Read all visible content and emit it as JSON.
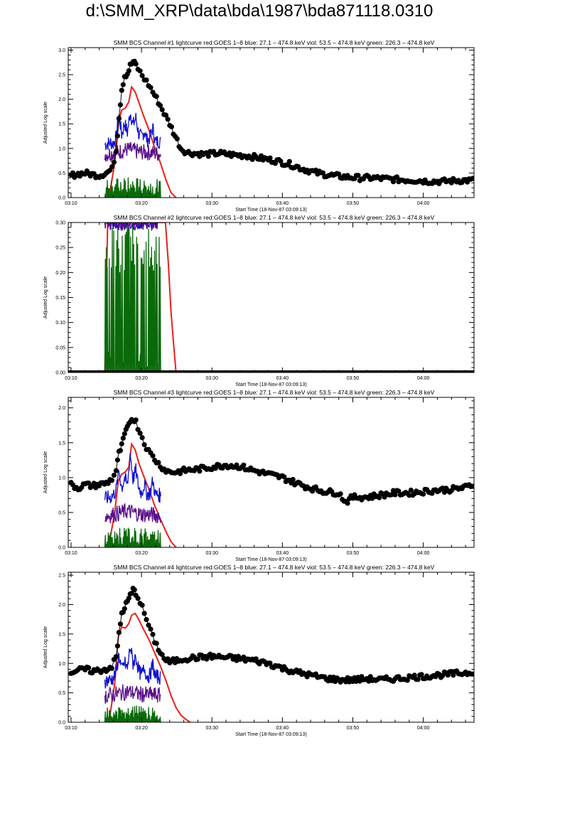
{
  "page": {
    "title": "d:\\SMM_XRP\\data\\bda\\1987\\bda871118.0310"
  },
  "colors": {
    "goes": "#e8201b",
    "blue": "#1010d0",
    "violet": "#5a0f8a",
    "green": "#0a6a0a",
    "bcs": "#000000"
  },
  "chart_data": [
    {
      "type": "line",
      "title": "SMM BCS Channel #1 lightcurve  red:GOES 1–8  blue: 27.1 – 474.8 keV  viol: 53.5 – 474.8 keV  green: 226.3 – 474.8 keV",
      "xlabel": "Start Time (18-Nov-87 03:09:13)",
      "ylabel": "Adjusted Log scale",
      "x_unit": "minutes after 03:00",
      "xlim": [
        9.6,
        67.2
      ],
      "ylim": [
        0,
        3.05
      ],
      "x_ticks": [
        10,
        20,
        30,
        40,
        50,
        60
      ],
      "x_tick_labels": [
        "03:10",
        "03:20",
        "03:30",
        "03:40",
        "03:50",
        "04:00"
      ],
      "y_ticks": [
        0,
        0.5,
        1.0,
        1.5,
        2.0,
        2.5,
        3.0
      ],
      "y_tick_labels": [
        "0.0",
        "0.5",
        "1.0",
        "1.5",
        "2.0",
        "2.5",
        "3.0"
      ],
      "series": [
        {
          "name": "GOES 1-8",
          "color": "goes",
          "x": [
            14.8,
            15.5,
            16.2,
            16.7,
            17.2,
            17.7,
            18.2,
            18.6,
            19.1,
            19.6,
            20.2,
            21.0,
            21.8,
            22.7,
            23.5,
            24.2,
            24.9
          ],
          "y": [
            0.0,
            0.1,
            0.7,
            1.5,
            1.78,
            1.82,
            1.95,
            2.25,
            2.15,
            1.95,
            1.7,
            1.4,
            1.05,
            0.7,
            0.35,
            0.1,
            0.0
          ]
        },
        {
          "name": "blue",
          "color": "blue",
          "x": [
            14.8,
            15.6,
            16.0,
            16.4,
            16.8,
            17.2,
            17.6,
            18.0,
            18.4,
            18.8,
            19.2,
            19.6,
            20.0,
            20.4,
            20.8,
            21.2,
            21.6,
            22.0,
            22.4,
            22.8
          ],
          "y": [
            1.08,
            1.12,
            1.1,
            1.22,
            1.68,
            1.28,
            1.52,
            1.32,
            1.75,
            1.48,
            1.62,
            1.3,
            1.22,
            1.36,
            1.16,
            1.22,
            1.42,
            1.12,
            1.16,
            1.1
          ]
        },
        {
          "name": "violet",
          "color": "violet",
          "x": [
            14.8,
            15.6,
            16.4,
            17.2,
            18.0,
            18.8,
            19.6,
            20.4,
            21.2,
            22.0,
            22.8
          ],
          "y": [
            0.88,
            0.9,
            0.92,
            0.95,
            0.98,
            0.96,
            0.93,
            0.92,
            0.92,
            0.9,
            0.88
          ]
        },
        {
          "name": "green",
          "color": "green",
          "x": [
            14.8,
            16.0,
            17.2,
            18.4,
            19.6,
            20.8,
            22.0,
            22.8
          ],
          "y": [
            0.3,
            0.3,
            0.32,
            0.33,
            0.32,
            0.31,
            0.3,
            0.3
          ]
        },
        {
          "name": "BCS",
          "color": "bcs",
          "x": [
            10,
            11,
            12,
            13,
            14,
            15,
            15.8,
            16.4,
            16.8,
            17.2,
            17.6,
            18.0,
            18.4,
            18.8,
            19.2,
            19.8,
            20.4,
            21.0,
            21.6,
            22.4,
            23.2,
            24.0,
            24.8,
            25.6,
            26.4,
            27.5,
            29,
            31,
            33,
            35,
            37,
            39,
            41,
            43,
            45,
            47,
            49,
            51,
            53,
            55,
            57,
            59,
            61,
            63,
            65,
            67
          ],
          "y": [
            0.45,
            0.48,
            0.5,
            0.47,
            0.45,
            0.5,
            0.58,
            0.95,
            1.65,
            2.2,
            2.48,
            2.52,
            2.68,
            2.76,
            2.7,
            2.55,
            2.42,
            2.3,
            2.15,
            1.95,
            1.72,
            1.5,
            1.25,
            1.0,
            0.92,
            0.9,
            0.88,
            0.9,
            0.87,
            0.85,
            0.8,
            0.75,
            0.68,
            0.58,
            0.5,
            0.45,
            0.42,
            0.4,
            0.4,
            0.38,
            0.36,
            0.35,
            0.33,
            0.33,
            0.35,
            0.35
          ]
        }
      ]
    },
    {
      "type": "line",
      "title": "SMM BCS Channel #2 lightcurve  red:GOES 1–8  blue: 27.1 – 474.8 keV  viol: 53.5 – 474.8 keV  green: 226.3 – 474.8 keV",
      "xlabel": "Start Time (18-Nov-87 03:09:13)",
      "ylabel": "Adjusted Log scale",
      "x_unit": "minutes after 03:00",
      "xlim": [
        9.6,
        67.2
      ],
      "ylim": [
        0,
        0.3
      ],
      "x_ticks": [
        10,
        20,
        30,
        40,
        50,
        60
      ],
      "x_tick_labels": [
        "03:10",
        "03:20",
        "03:30",
        "03:40",
        "03:50",
        "04:00"
      ],
      "y_ticks": [
        0,
        0.05,
        0.1,
        0.15,
        0.2,
        0.25,
        0.3
      ],
      "y_tick_labels": [
        "0.00",
        "0.05",
        "0.10",
        "0.15",
        "0.20",
        "0.25",
        "0.30"
      ],
      "series": [
        {
          "name": "GOES 1-8",
          "color": "goes",
          "x": [
            14.8,
            15.2,
            16.0,
            17.0,
            18.0,
            19.0,
            20.0,
            21.0,
            22.0,
            23.0,
            23.4,
            23.8,
            24.2,
            24.6,
            24.9
          ],
          "y": [
            0.0,
            0.3,
            0.3,
            0.3,
            0.3,
            0.3,
            0.3,
            0.3,
            0.3,
            0.3,
            0.3,
            0.22,
            0.12,
            0.05,
            0.0
          ]
        },
        {
          "name": "blue",
          "color": "blue",
          "x": [
            14.8,
            15.5,
            16.5,
            17.5,
            18.5,
            19.5,
            20.5,
            21.5,
            22.5
          ],
          "y": [
            0.3,
            0.3,
            0.3,
            0.3,
            0.3,
            0.3,
            0.3,
            0.3,
            0.3
          ]
        },
        {
          "name": "violet",
          "color": "violet",
          "x": [
            14.8,
            15.5,
            16.5,
            17.5,
            18.5,
            19.5,
            20.5,
            21.5,
            22.5
          ],
          "y": [
            0.3,
            0.3,
            0.3,
            0.3,
            0.3,
            0.3,
            0.3,
            0.3,
            0.3
          ]
        },
        {
          "name": "green",
          "color": "green",
          "x": [
            14.8,
            16.0,
            17.2,
            18.4,
            19.6,
            20.8,
            22.0,
            22.8
          ],
          "y": [
            0.27,
            0.28,
            0.26,
            0.29,
            0.27,
            0.28,
            0.26,
            0.27
          ]
        },
        {
          "name": "BCS",
          "color": "bcs",
          "x": [
            10,
            20,
            30,
            40,
            50,
            60,
            67
          ],
          "y": [
            0,
            0,
            0,
            0,
            0,
            0,
            0
          ]
        }
      ]
    },
    {
      "type": "line",
      "title": "SMM BCS Channel #3 lightcurve  red:GOES 1–8  blue: 27.1 – 474.8 keV  viol: 53.5 – 474.8 keV  green: 226.3 – 474.8 keV",
      "xlabel": "Start Time (18-Nov-87 03:09:13)",
      "ylabel": "Adjusted Log scale",
      "x_unit": "minutes after 03:00",
      "xlim": [
        9.6,
        67.2
      ],
      "ylim": [
        0,
        2.15
      ],
      "x_ticks": [
        10,
        20,
        30,
        40,
        50,
        60
      ],
      "x_tick_labels": [
        "03:10",
        "03:20",
        "03:30",
        "03:40",
        "03:50",
        "04:00"
      ],
      "y_ticks": [
        0,
        0.5,
        1.0,
        1.5,
        2.0
      ],
      "y_tick_labels": [
        "0.0",
        "0.5",
        "1.0",
        "1.5",
        "2.0"
      ],
      "series": [
        {
          "name": "GOES 1-8",
          "color": "goes",
          "x": [
            14.8,
            15.5,
            16.2,
            16.7,
            17.2,
            17.7,
            18.2,
            18.6,
            19.1,
            19.6,
            20.2,
            21.0,
            21.8,
            22.7,
            23.5,
            24.2,
            24.9
          ],
          "y": [
            0.0,
            0.1,
            0.5,
            0.95,
            1.05,
            1.08,
            1.15,
            1.48,
            1.4,
            1.22,
            1.05,
            0.85,
            0.62,
            0.4,
            0.22,
            0.08,
            0.0
          ]
        },
        {
          "name": "blue",
          "color": "blue",
          "x": [
            14.8,
            15.6,
            16.0,
            16.4,
            16.8,
            17.2,
            17.6,
            18.0,
            18.4,
            18.8,
            19.2,
            19.6,
            20.0,
            20.4,
            20.8,
            21.2,
            21.6,
            22.0,
            22.4,
            22.8
          ],
          "y": [
            0.7,
            0.72,
            0.75,
            0.82,
            1.1,
            0.85,
            1.0,
            0.88,
            1.35,
            0.98,
            1.1,
            0.86,
            0.78,
            0.9,
            0.76,
            0.78,
            0.95,
            0.75,
            0.76,
            0.72
          ]
        },
        {
          "name": "violet",
          "color": "violet",
          "x": [
            14.8,
            15.6,
            16.4,
            17.2,
            18.0,
            18.8,
            19.6,
            20.4,
            21.2,
            22.0,
            22.8
          ],
          "y": [
            0.45,
            0.46,
            0.48,
            0.5,
            0.52,
            0.5,
            0.48,
            0.47,
            0.47,
            0.46,
            0.45
          ]
        },
        {
          "name": "green",
          "color": "green",
          "x": [
            14.8,
            16.0,
            17.2,
            18.4,
            19.6,
            20.8,
            22.0,
            22.8
          ],
          "y": [
            0.2,
            0.2,
            0.22,
            0.23,
            0.22,
            0.21,
            0.2,
            0.2
          ]
        },
        {
          "name": "BCS",
          "color": "bcs",
          "x": [
            10,
            11,
            12,
            13,
            14,
            15,
            15.8,
            16.4,
            16.8,
            17.2,
            17.6,
            18.0,
            18.4,
            18.8,
            19.2,
            19.8,
            20.4,
            21.0,
            21.6,
            22.4,
            23.2,
            24.0,
            25,
            26,
            28,
            30,
            32,
            34,
            36,
            38,
            40,
            42,
            44,
            46,
            48,
            49,
            50,
            52,
            54,
            56,
            58,
            60,
            62,
            64,
            66,
            67
          ],
          "y": [
            0.9,
            0.85,
            0.9,
            0.88,
            0.9,
            0.92,
            0.98,
            1.1,
            1.35,
            1.45,
            1.62,
            1.7,
            1.82,
            1.85,
            1.8,
            1.65,
            1.5,
            1.38,
            1.3,
            1.2,
            1.12,
            1.08,
            1.08,
            1.1,
            1.12,
            1.15,
            1.18,
            1.16,
            1.1,
            1.05,
            1.0,
            0.92,
            0.85,
            0.8,
            0.78,
            0.65,
            0.72,
            0.72,
            0.75,
            0.78,
            0.78,
            0.8,
            0.82,
            0.83,
            0.86,
            0.9
          ]
        }
      ]
    },
    {
      "type": "line",
      "title": "SMM BCS Channel #4 lightcurve  red:GOES 1–8  blue: 27.1 – 474.8 keV  viol: 53.5 – 474.8 keV  green: 226.3 – 474.8 keV",
      "xlabel": "Start Time (18-Nov-87 03:09:13)",
      "ylabel": "Adjusted Log scale",
      "x_unit": "minutes after 03:00",
      "xlim": [
        9.6,
        67.2
      ],
      "ylim": [
        0,
        2.55
      ],
      "x_ticks": [
        10,
        20,
        30,
        40,
        50,
        60
      ],
      "x_tick_labels": [
        "03:10",
        "03:20",
        "03:30",
        "03:40",
        "03:50",
        "04:00"
      ],
      "y_ticks": [
        0,
        0.5,
        1.0,
        1.5,
        2.0,
        2.5
      ],
      "y_tick_labels": [
        "0.0",
        "0.5",
        "1.0",
        "1.5",
        "2.0",
        "2.5"
      ],
      "series": [
        {
          "name": "GOES 1-8",
          "color": "goes",
          "x": [
            14.8,
            15.5,
            16.2,
            16.7,
            17.2,
            17.7,
            18.2,
            18.6,
            19.1,
            19.6,
            20.2,
            21.0,
            21.8,
            22.7,
            23.5,
            24.2,
            24.9,
            25.6,
            26.3,
            26.9
          ],
          "y": [
            0.0,
            0.1,
            0.65,
            1.45,
            1.62,
            1.6,
            1.68,
            1.82,
            1.85,
            1.75,
            1.6,
            1.42,
            1.2,
            0.95,
            0.7,
            0.45,
            0.25,
            0.12,
            0.05,
            0.0
          ]
        },
        {
          "name": "blue",
          "color": "blue",
          "x": [
            14.8,
            15.6,
            16.0,
            16.4,
            16.8,
            17.2,
            17.6,
            18.0,
            18.4,
            18.8,
            19.2,
            19.6,
            20.0,
            20.4,
            20.8,
            21.2,
            21.6,
            22.0,
            22.4,
            22.8
          ],
          "y": [
            0.7,
            0.72,
            0.75,
            0.85,
            1.15,
            0.88,
            1.02,
            0.9,
            1.3,
            1.0,
            1.12,
            0.88,
            0.8,
            0.92,
            0.78,
            0.8,
            0.98,
            0.76,
            0.78,
            0.74
          ]
        },
        {
          "name": "violet",
          "color": "violet",
          "x": [
            14.8,
            15.6,
            16.4,
            17.2,
            18.0,
            18.8,
            19.6,
            20.4,
            21.2,
            22.0,
            22.8
          ],
          "y": [
            0.45,
            0.46,
            0.48,
            0.5,
            0.52,
            0.5,
            0.48,
            0.47,
            0.47,
            0.46,
            0.45
          ]
        },
        {
          "name": "green",
          "color": "green",
          "x": [
            14.8,
            16.0,
            17.2,
            18.4,
            19.6,
            20.8,
            22.0,
            22.8
          ],
          "y": [
            0.2,
            0.2,
            0.22,
            0.23,
            0.22,
            0.21,
            0.2,
            0.2
          ]
        },
        {
          "name": "BCS",
          "color": "bcs",
          "x": [
            10,
            11,
            12,
            13,
            14,
            15,
            15.8,
            16.4,
            16.8,
            17.2,
            17.6,
            18.0,
            18.4,
            18.8,
            19.2,
            19.8,
            20.4,
            21.0,
            21.6,
            22.4,
            23.2,
            24.0,
            25,
            26,
            28,
            30,
            32,
            34,
            36,
            38,
            40,
            42,
            44,
            46,
            48,
            50,
            52,
            54,
            56,
            58,
            60,
            62,
            64,
            66,
            67
          ],
          "y": [
            0.85,
            0.88,
            0.9,
            0.87,
            0.88,
            0.9,
            0.95,
            1.1,
            1.5,
            1.85,
            1.95,
            2.05,
            2.15,
            2.25,
            2.2,
            2.05,
            1.85,
            1.65,
            1.45,
            1.25,
            1.08,
            1.02,
            1.05,
            1.08,
            1.1,
            1.12,
            1.1,
            1.08,
            1.05,
            1.0,
            0.92,
            0.85,
            0.8,
            0.75,
            0.72,
            0.72,
            0.74,
            0.72,
            0.74,
            0.76,
            0.78,
            0.8,
            0.82,
            0.84,
            0.85
          ]
        }
      ]
    }
  ]
}
